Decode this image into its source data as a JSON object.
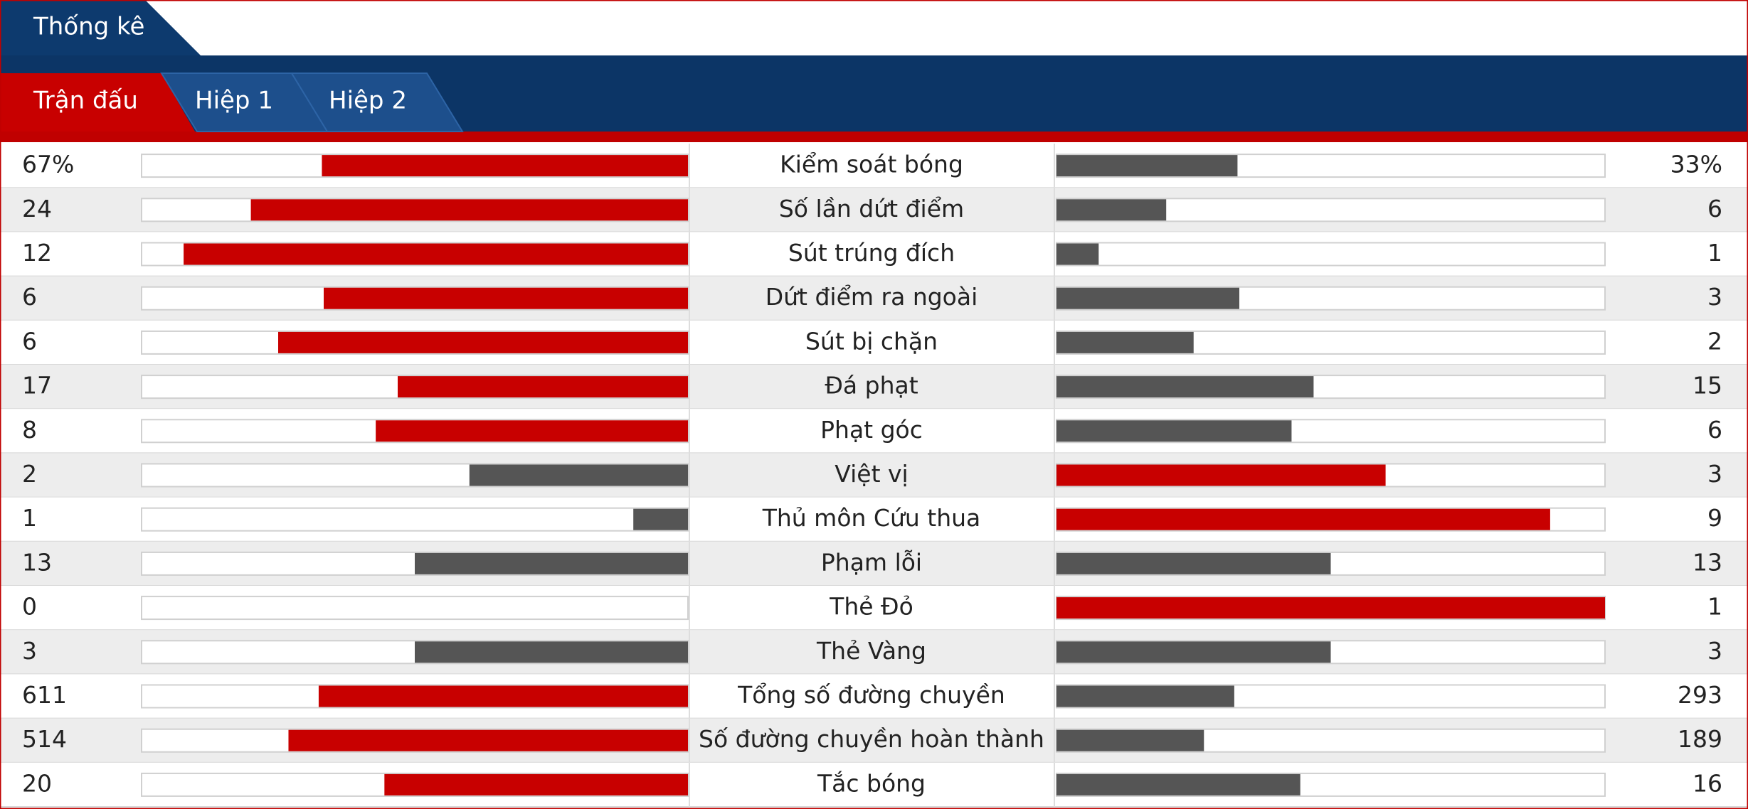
{
  "header": {
    "title": "Thống kê"
  },
  "tabs": [
    "Trận đấu",
    "Hiệp 1",
    "Hiệp 2"
  ],
  "active_tab": 0,
  "colors": {
    "lead": "#c80000",
    "trail": "#555555"
  },
  "rows": [
    {
      "label": "Kiểm soát bóng",
      "home": 67,
      "away": 33,
      "home_label": "67%",
      "away_label": "33%"
    },
    {
      "label": "Số lần dứt điểm",
      "home": 24,
      "away": 6
    },
    {
      "label": "Sút trúng đích",
      "home": 12,
      "away": 1
    },
    {
      "label": "Dứt điểm ra ngoài",
      "home": 6,
      "away": 3
    },
    {
      "label": "Sút bị chặn",
      "home": 6,
      "away": 2
    },
    {
      "label": "Đá phạt",
      "home": 17,
      "away": 15
    },
    {
      "label": "Phạt góc",
      "home": 8,
      "away": 6
    },
    {
      "label": "Việt vị",
      "home": 2,
      "away": 3
    },
    {
      "label": "Thủ môn Cứu thua",
      "home": 1,
      "away": 9
    },
    {
      "label": "Phạm lỗi",
      "home": 13,
      "away": 13
    },
    {
      "label": "Thẻ Đỏ",
      "home": 0,
      "away": 1
    },
    {
      "label": "Thẻ Vàng",
      "home": 3,
      "away": 3
    },
    {
      "label": "Tổng số đường chuyền",
      "home": 611,
      "away": 293
    },
    {
      "label": "Số đường chuyền hoàn thành",
      "home": 514,
      "away": 189
    },
    {
      "label": "Tắc bóng",
      "home": 20,
      "away": 16
    }
  ]
}
